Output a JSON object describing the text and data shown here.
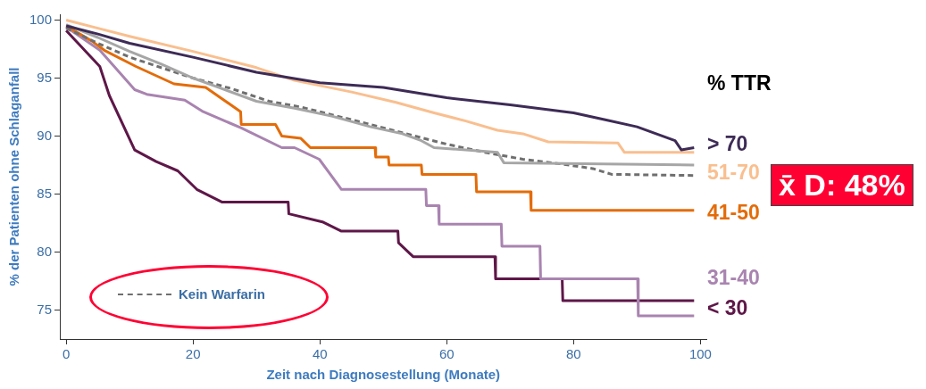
{
  "chart_data": {
    "type": "line",
    "xlabel": "Zeit nach Diagnosestellung (Monate)",
    "ylabel": "% der Patienten ohne Schlaganfall",
    "legend_title": "% TTR",
    "legend": "bottom left",
    "grid": false,
    "marker": "none",
    "xlim": [
      -1,
      101
    ],
    "xticks": [
      0,
      20,
      40,
      60,
      80,
      100
    ],
    "ylim": [
      72.5,
      100.5
    ],
    "yticks": [
      75,
      80,
      85,
      90,
      95,
      100
    ],
    "annotations": [
      "x̄ D: 48%"
    ],
    "series": [
      {
        "name": "> 70",
        "color": "#3d2b56",
        "x": [
          0,
          5,
          10,
          20,
          30,
          40,
          50,
          60,
          70,
          80,
          85,
          90,
          93,
          96,
          97,
          99
        ],
        "values": [
          99.5,
          98.8,
          98,
          96.8,
          95.5,
          94.6,
          94.2,
          93.3,
          92.7,
          92,
          91.4,
          90.8,
          90.2,
          89.6,
          88.8,
          89.0
        ]
      },
      {
        "name": "51-70",
        "color": "#f9bf8f",
        "x": [
          0,
          5,
          10,
          20,
          30,
          36,
          45,
          52,
          58,
          63,
          68,
          72,
          76,
          87,
          88,
          99
        ],
        "values": [
          100,
          99.3,
          98.6,
          97.3,
          95.9,
          94.8,
          93.8,
          92.9,
          92,
          91.3,
          90.5,
          90.2,
          89.5,
          89.4,
          88.6,
          88.6
        ]
      },
      {
        "color": "#a6a6a6",
        "x": [
          0,
          5,
          10,
          15,
          20,
          24,
          30,
          36,
          42,
          48,
          53,
          56,
          58,
          63,
          68,
          69,
          99
        ],
        "values": [
          99.6,
          98.5,
          97.3,
          96.2,
          95,
          94.2,
          93,
          92.4,
          91.7,
          90.8,
          90.2,
          89.6,
          89,
          88.8,
          88.6,
          87.7,
          87.5
        ]
      },
      {
        "name": "Kein Warfarin",
        "color": "#6f6f6f",
        "line_style": "dashed",
        "x": [
          0,
          5,
          10,
          20,
          26,
          32,
          37,
          48,
          55,
          60,
          66,
          72,
          78,
          83,
          86,
          99
        ],
        "values": [
          99.3,
          98,
          96.8,
          95,
          94.1,
          93,
          92.5,
          91,
          90,
          89.3,
          88.6,
          88,
          87.6,
          87.2,
          86.7,
          86.6
        ]
      },
      {
        "name": "41-50",
        "color": "#e36c09",
        "x": [
          0,
          4,
          6,
          11,
          17,
          22,
          27.5,
          27.6,
          33,
          34,
          37,
          38.5,
          48.7,
          48.8,
          50.8,
          50.9,
          56,
          56.1,
          64.6,
          64.7,
          73.2,
          73.3,
          99
        ],
        "values": [
          99.5,
          98.2,
          97.4,
          96,
          94.5,
          94.2,
          92.1,
          91,
          91,
          90,
          89.8,
          89,
          89,
          88.2,
          88.2,
          87.5,
          87.5,
          86.7,
          86.7,
          85.2,
          85.2,
          83.6,
          83.6
        ]
      },
      {
        "name": "31-40",
        "color": "#a984b0",
        "x": [
          0,
          5.3,
          10.8,
          12.7,
          18.7,
          21.6,
          27.6,
          34,
          36,
          39.9,
          43.4,
          56.7,
          56.8,
          58.7,
          58.8,
          68.6,
          68.7,
          74.7,
          74.8,
          90.1,
          90.2,
          99
        ],
        "values": [
          99.4,
          97.4,
          94,
          93.6,
          93.1,
          92.1,
          90.7,
          89,
          89,
          88,
          85.4,
          85.4,
          84,
          84,
          82.4,
          82.4,
          80.5,
          80.5,
          77.7,
          77.7,
          74.5,
          74.5
        ]
      },
      {
        "name": "< 30",
        "color": "#5e1748",
        "x": [
          0,
          5.3,
          6.8,
          10.8,
          14.2,
          17.6,
          20.6,
          24.6,
          35,
          35.1,
          40.4,
          43.4,
          52.3,
          52.4,
          54.7,
          67.6,
          67.7,
          78.2,
          78.3,
          99
        ],
        "values": [
          99.1,
          96,
          93.5,
          88.8,
          87.8,
          87,
          85.4,
          84.3,
          84.3,
          83.3,
          82.6,
          81.8,
          81.8,
          80.8,
          79.6,
          79.6,
          77.7,
          77.7,
          75.8,
          75.8
        ]
      }
    ]
  }
}
